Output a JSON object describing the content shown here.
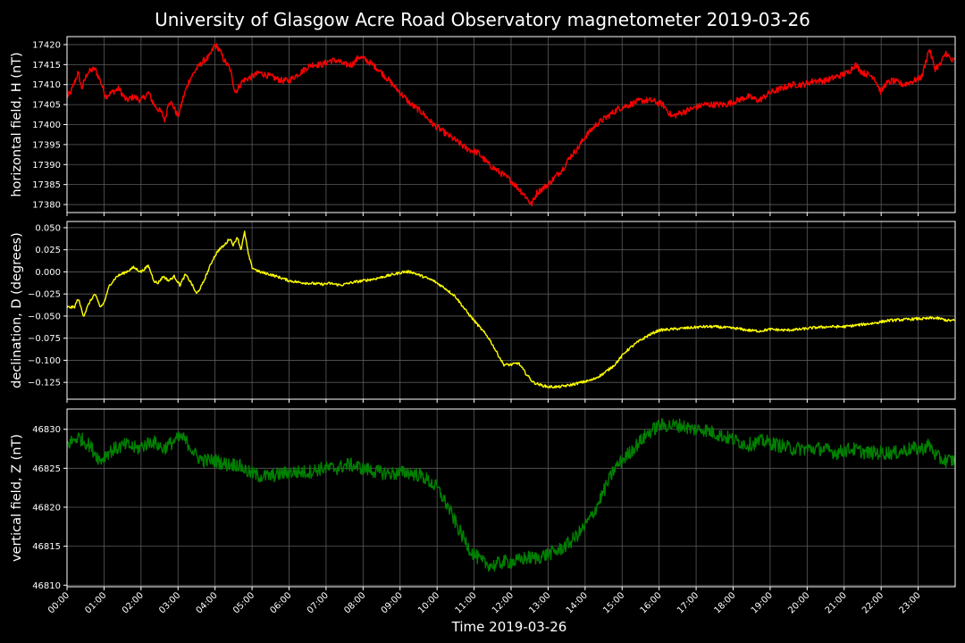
{
  "figure": {
    "title": "University of Glasgow Acre Road Observatory magnetometer 2019-03-26",
    "xlabel": "Time 2019-03-26",
    "background": "#000000",
    "foreground": "#ffffff",
    "grid_color": "#5a5a5a"
  },
  "chart_data": [
    {
      "type": "line",
      "ylabel": "horizontal field, H (nT)",
      "color": "#ff0000",
      "grid": true,
      "ylim": [
        17378,
        17422
      ],
      "yticks": [
        17380,
        17385,
        17390,
        17395,
        17400,
        17405,
        17410,
        17415,
        17420
      ],
      "ytick_labels": [
        "17380",
        "17385",
        "17390",
        "17395",
        "17400",
        "17405",
        "17410",
        "17415",
        "17420"
      ],
      "noise": 0.8,
      "x": [
        0.0,
        0.1,
        0.3,
        0.4,
        0.55,
        0.75,
        0.9,
        1.05,
        1.2,
        1.4,
        1.6,
        1.8,
        2.0,
        2.2,
        2.35,
        2.55,
        2.65,
        2.75,
        2.85,
        3.0,
        3.15,
        3.3,
        3.5,
        3.7,
        3.85,
        4.0,
        4.1,
        4.25,
        4.4,
        4.55,
        4.75,
        5.0,
        5.2,
        5.5,
        5.8,
        6.0,
        6.3,
        6.6,
        6.9,
        7.1,
        7.3,
        7.5,
        7.7,
        7.9,
        8.1,
        8.4,
        8.7,
        9.0,
        9.3,
        9.6,
        9.9,
        10.2,
        10.5,
        10.8,
        11.1,
        11.4,
        11.7,
        12.0,
        12.2,
        12.4,
        12.55,
        12.7,
        12.85,
        13.0,
        13.2,
        13.4,
        13.6,
        13.8,
        14.0,
        14.3,
        14.6,
        14.9,
        15.2,
        15.5,
        15.8,
        16.1,
        16.35,
        16.6,
        16.9,
        17.2,
        17.5,
        17.8,
        18.1,
        18.4,
        18.7,
        19.0,
        19.3,
        19.6,
        19.9,
        20.2,
        20.5,
        20.8,
        21.1,
        21.3,
        21.5,
        21.8,
        22.0,
        22.1,
        22.3,
        22.6,
        22.9,
        23.1,
        23.3,
        23.45,
        23.6,
        23.75,
        23.9,
        23.99
      ],
      "values": [
        17407,
        17408,
        17413,
        17409,
        17413,
        17414,
        17411,
        17407,
        17408,
        17409,
        17406,
        17407,
        17406,
        17408,
        17405,
        17403,
        17401,
        17406,
        17405,
        17402,
        17407,
        17411,
        17414,
        17416,
        17417,
        17420,
        17419,
        17416,
        17414,
        17408,
        17411,
        17412,
        17413,
        17412,
        17411,
        17411,
        17413,
        17415,
        17415,
        17416,
        17416,
        17415,
        17415,
        17417,
        17416,
        17414,
        17411,
        17408,
        17405,
        17403,
        17400,
        17398,
        17396,
        17394,
        17393,
        17390,
        17388,
        17386,
        17384,
        17382,
        17380,
        17383,
        17384,
        17385,
        17387,
        17389,
        17392,
        17394,
        17397,
        17400,
        17402,
        17404,
        17405,
        17406,
        17406,
        17405,
        17402,
        17403,
        17404,
        17405,
        17405,
        17405,
        17406,
        17407,
        17406,
        17408,
        17409,
        17410,
        17410,
        17411,
        17411,
        17412,
        17413,
        17415,
        17413,
        17412,
        17408,
        17410,
        17411,
        17410,
        17411,
        17412,
        17419,
        17414,
        17415,
        17418,
        17416,
        17416
      ]
    },
    {
      "type": "line",
      "ylabel": "declination, D (degrees)",
      "color": "#ffff00",
      "grid": true,
      "ylim": [
        -0.144,
        0.057
      ],
      "yticks": [
        -0.125,
        -0.1,
        -0.075,
        -0.05,
        -0.025,
        0.0,
        0.025,
        0.05
      ],
      "ytick_labels": [
        "−0.125",
        "−0.100",
        "−0.075",
        "−0.050",
        "−0.025",
        "0.000",
        "0.025",
        "0.050"
      ],
      "noise": 0.0015,
      "x": [
        0.0,
        0.2,
        0.3,
        0.45,
        0.6,
        0.75,
        0.9,
        1.0,
        1.15,
        1.35,
        1.6,
        1.8,
        2.0,
        2.2,
        2.35,
        2.45,
        2.6,
        2.75,
        2.9,
        3.05,
        3.2,
        3.35,
        3.5,
        3.65,
        3.8,
        3.95,
        4.1,
        4.25,
        4.4,
        4.5,
        4.6,
        4.7,
        4.8,
        4.9,
        5.0,
        5.2,
        5.5,
        5.8,
        6.0,
        6.3,
        6.6,
        6.9,
        7.1,
        7.4,
        7.7,
        8.0,
        8.3,
        8.6,
        8.9,
        9.1,
        9.3,
        9.6,
        9.9,
        10.2,
        10.5,
        10.8,
        11.1,
        11.4,
        11.6,
        11.8,
        12.0,
        12.2,
        12.4,
        12.6,
        12.8,
        13.0,
        13.3,
        13.6,
        13.9,
        14.2,
        14.5,
        14.8,
        15.1,
        15.4,
        15.7,
        16.0,
        16.3,
        16.6,
        16.9,
        17.2,
        17.5,
        17.8,
        18.1,
        18.4,
        18.7,
        19.0,
        19.4,
        19.8,
        20.2,
        20.6,
        21.0,
        21.4,
        21.8,
        22.2,
        22.6,
        23.0,
        23.2,
        23.4,
        23.6,
        23.8,
        23.99
      ],
      "values": [
        -0.04,
        -0.04,
        -0.03,
        -0.05,
        -0.035,
        -0.025,
        -0.04,
        -0.035,
        -0.015,
        -0.005,
        0.0,
        0.005,
        0.0,
        0.007,
        -0.01,
        -0.013,
        -0.005,
        -0.01,
        -0.005,
        -0.015,
        -0.003,
        -0.012,
        -0.025,
        -0.015,
        0.0,
        0.015,
        0.025,
        0.03,
        0.038,
        0.03,
        0.04,
        0.025,
        0.045,
        0.02,
        0.005,
        0.0,
        -0.003,
        -0.007,
        -0.01,
        -0.012,
        -0.013,
        -0.014,
        -0.013,
        -0.015,
        -0.012,
        -0.01,
        -0.008,
        -0.005,
        -0.002,
        0.0,
        0.0,
        -0.005,
        -0.01,
        -0.018,
        -0.028,
        -0.045,
        -0.06,
        -0.075,
        -0.09,
        -0.105,
        -0.105,
        -0.103,
        -0.115,
        -0.125,
        -0.128,
        -0.13,
        -0.13,
        -0.128,
        -0.125,
        -0.122,
        -0.115,
        -0.105,
        -0.09,
        -0.08,
        -0.072,
        -0.066,
        -0.065,
        -0.064,
        -0.063,
        -0.062,
        -0.062,
        -0.063,
        -0.064,
        -0.066,
        -0.067,
        -0.065,
        -0.066,
        -0.065,
        -0.063,
        -0.062,
        -0.062,
        -0.06,
        -0.058,
        -0.055,
        -0.054,
        -0.053,
        -0.053,
        -0.052,
        -0.053,
        -0.055,
        -0.055
      ]
    },
    {
      "type": "line",
      "ylabel": "vertical field, Z (nT)",
      "color": "#008000",
      "grid": true,
      "ylim": [
        46809.8,
        46832.6
      ],
      "yticks": [
        46810,
        46815,
        46820,
        46825,
        46830
      ],
      "ytick_labels": [
        "46810",
        "46815",
        "46820",
        "46825",
        "46830"
      ],
      "noise": 0.9,
      "x": [
        0.0,
        0.3,
        0.6,
        0.9,
        1.1,
        1.3,
        1.6,
        1.9,
        2.1,
        2.3,
        2.6,
        2.9,
        3.1,
        3.3,
        3.5,
        3.7,
        4.0,
        4.3,
        4.6,
        4.9,
        5.2,
        5.5,
        5.8,
        6.1,
        6.5,
        6.9,
        7.3,
        7.6,
        8.0,
        8.4,
        8.8,
        9.2,
        9.6,
        10.0,
        10.3,
        10.6,
        10.9,
        11.2,
        11.5,
        11.8,
        12.1,
        12.4,
        12.7,
        13.0,
        13.3,
        13.6,
        13.9,
        14.2,
        14.5,
        14.8,
        15.1,
        15.4,
        15.7,
        16.0,
        16.3,
        16.6,
        16.9,
        17.2,
        17.5,
        17.8,
        18.1,
        18.4,
        18.8,
        19.2,
        19.6,
        20.0,
        20.4,
        20.8,
        21.2,
        21.6,
        22.0,
        22.4,
        22.8,
        23.1,
        23.3,
        23.5,
        23.7,
        23.99
      ],
      "values": [
        46828,
        46829,
        46828,
        46826,
        46827,
        46827.5,
        46828,
        46827.5,
        46828,
        46828.5,
        46827.5,
        46828.5,
        46829,
        46828,
        46826.5,
        46826,
        46826,
        46825.5,
        46825.5,
        46824.5,
        46824,
        46824,
        46824.3,
        46824.5,
        46824.5,
        46825,
        46825,
        46825.5,
        46825,
        46824.5,
        46824.3,
        46824.5,
        46824,
        46822.5,
        46820,
        46817,
        46814.5,
        46813,
        46812.5,
        46813,
        46813,
        46813.5,
        46813.5,
        46814,
        46814.5,
        46815.5,
        46817,
        46819,
        46822,
        46825,
        46826.5,
        46828,
        46829.5,
        46830.5,
        46830.5,
        46830.5,
        46830,
        46830,
        46829.5,
        46829,
        46828.5,
        46828,
        46828.5,
        46828,
        46827.5,
        46827.5,
        46827.5,
        46827,
        46827.5,
        46827,
        46827,
        46827,
        46827.5,
        46827.5,
        46828,
        46826.5,
        46826,
        46826
      ]
    }
  ],
  "x_axis": {
    "xlim": [
      0,
      24
    ],
    "ticks": [
      0,
      1,
      2,
      3,
      4,
      5,
      6,
      7,
      8,
      9,
      10,
      11,
      12,
      13,
      14,
      15,
      16,
      17,
      18,
      19,
      20,
      21,
      22,
      23
    ],
    "tick_labels": [
      "00:00",
      "01:00",
      "02:00",
      "03:00",
      "04:00",
      "05:00",
      "06:00",
      "07:00",
      "08:00",
      "09:00",
      "10:00",
      "11:00",
      "12:00",
      "13:00",
      "14:00",
      "15:00",
      "16:00",
      "17:00",
      "18:00",
      "19:00",
      "20:00",
      "21:00",
      "22:00",
      "23:00"
    ]
  }
}
